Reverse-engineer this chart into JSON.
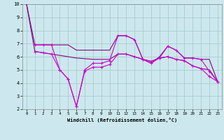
{
  "background_color": "#cce8ee",
  "grid_color": "#aacccc",
  "line_color": "#880088",
  "line_color2": "#cc00cc",
  "xlabel": "Windchill (Refroidissement éolien,°C)",
  "xlim": [
    -0.5,
    23.5
  ],
  "ylim": [
    2,
    10
  ],
  "yticks": [
    2,
    3,
    4,
    5,
    6,
    7,
    8,
    9,
    10
  ],
  "xticks": [
    0,
    1,
    2,
    3,
    4,
    5,
    6,
    7,
    8,
    9,
    10,
    11,
    12,
    13,
    14,
    15,
    16,
    17,
    18,
    19,
    20,
    21,
    22,
    23
  ],
  "line1_x": [
    0,
    1,
    2,
    3,
    4,
    5,
    6,
    7,
    8,
    9,
    10,
    11,
    12,
    13,
    14,
    15,
    16,
    17,
    18,
    19,
    20,
    21,
    22,
    23
  ],
  "line1_y": [
    10,
    6.9,
    6.9,
    6.9,
    6.9,
    6.9,
    6.5,
    6.5,
    6.5,
    6.5,
    6.5,
    7.6,
    7.6,
    7.3,
    5.8,
    5.5,
    6.0,
    6.8,
    6.5,
    5.9,
    5.9,
    5.8,
    5.8,
    4.1
  ],
  "line2_x": [
    0,
    1,
    2,
    3,
    4,
    5,
    6,
    7,
    8,
    9,
    10,
    11,
    12,
    13,
    14,
    15,
    16,
    17,
    18,
    19,
    20,
    21,
    22,
    23
  ],
  "line2_y": [
    10,
    6.4,
    6.3,
    6.2,
    6.1,
    6.0,
    5.9,
    5.85,
    5.8,
    5.8,
    5.8,
    6.2,
    6.2,
    6.0,
    5.8,
    5.65,
    5.9,
    6.0,
    5.8,
    5.7,
    5.3,
    5.1,
    5.0,
    4.1
  ],
  "line3_x": [
    1,
    2,
    3,
    4,
    5,
    6,
    7,
    8,
    9,
    10,
    11,
    12,
    13,
    14,
    15,
    16,
    17,
    18,
    19,
    20,
    21,
    22,
    23
  ],
  "line3_y": [
    6.9,
    6.9,
    6.9,
    5.0,
    4.3,
    2.2,
    5.0,
    5.5,
    5.5,
    5.7,
    7.6,
    7.6,
    7.3,
    5.8,
    5.5,
    5.9,
    6.8,
    6.5,
    5.9,
    5.9,
    5.8,
    4.9,
    4.1
  ],
  "line4_x": [
    1,
    2,
    3,
    4,
    5,
    6,
    7,
    8,
    9,
    10,
    11,
    12,
    13,
    14,
    15,
    16,
    17,
    18,
    19,
    20,
    21,
    22,
    23
  ],
  "line4_y": [
    6.4,
    6.3,
    6.2,
    5.0,
    4.3,
    2.2,
    4.9,
    5.2,
    5.2,
    5.4,
    6.2,
    6.2,
    6.0,
    5.8,
    5.65,
    5.9,
    6.0,
    5.8,
    5.7,
    5.3,
    5.1,
    4.5,
    4.1
  ]
}
